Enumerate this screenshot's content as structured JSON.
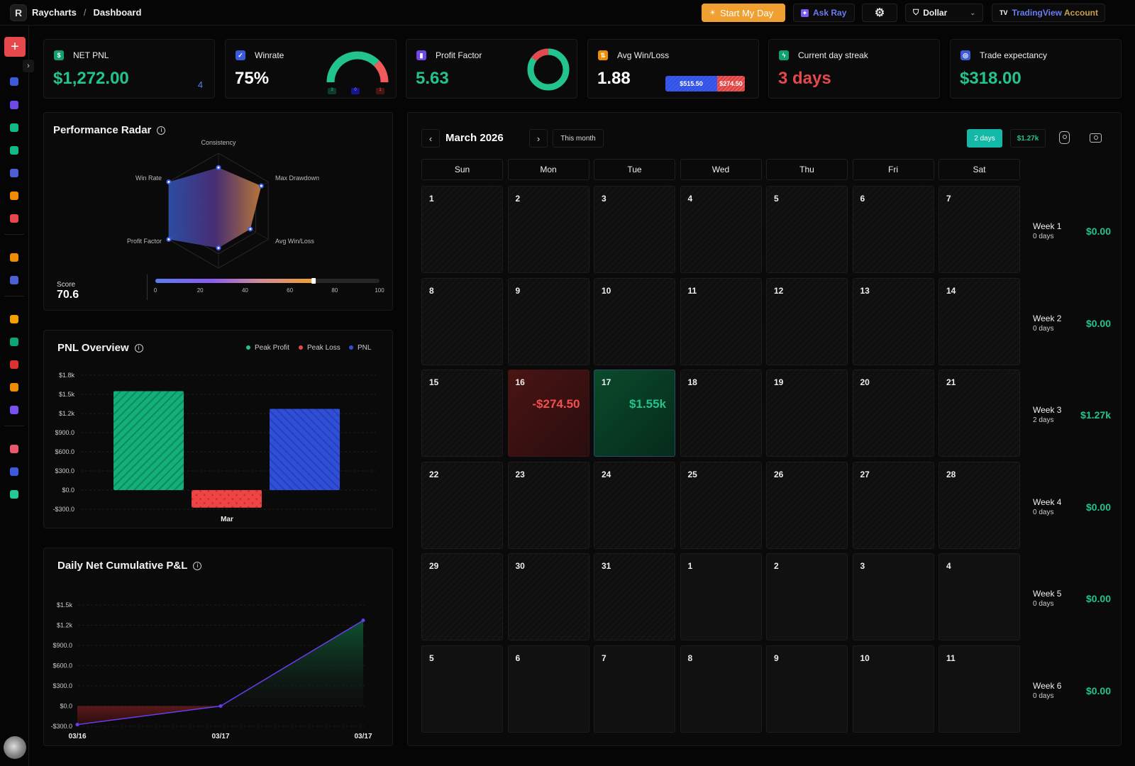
{
  "header": {
    "app": "Raycharts",
    "sep": "/",
    "page": "Dashboard",
    "start_day": "Start My Day",
    "ask_ray": "Ask Ray",
    "currency": "Dollar",
    "tv_brand": "TradingView",
    "tv_account": "Account",
    "logo_letter": "R"
  },
  "sidebar": {
    "expand": "›",
    "plus": "+",
    "icons": [
      {
        "name": "dashboard-icon",
        "color": "#3b5bdb"
      },
      {
        "name": "journal-icon",
        "color": "#7048e8"
      },
      {
        "name": "eye-icon",
        "color": "#12b886"
      },
      {
        "name": "growth-icon",
        "color": "#12b886"
      },
      {
        "name": "analytics-icon",
        "color": "#4c5fd5"
      },
      {
        "name": "calendar-icon",
        "color": "#f08c00"
      },
      {
        "name": "reports-icon",
        "color": "#e5484d"
      },
      {
        "name": "bolt-icon",
        "color": "#f08c00"
      },
      {
        "name": "profile-icon",
        "color": "#4c5fd5"
      },
      {
        "name": "filter-icon",
        "color": "#f59f00"
      },
      {
        "name": "target-icon",
        "color": "#0ca678"
      },
      {
        "name": "chart-red-icon",
        "color": "#e03131"
      },
      {
        "name": "trophy-icon",
        "color": "#f08c00"
      },
      {
        "name": "window-icon",
        "color": "#7950f2"
      },
      {
        "name": "notes-icon",
        "color": "#e8596c"
      },
      {
        "name": "bars-icon",
        "color": "#3b5bdb"
      },
      {
        "name": "image-chart-icon",
        "color": "#20c997"
      }
    ]
  },
  "kpis": {
    "net_pnl": {
      "label": "NET PNL",
      "value": "$1,272.00",
      "count": "4"
    },
    "winrate": {
      "label": "Winrate",
      "value": "75%",
      "wins": "3",
      "breakeven": "0",
      "losses": "1",
      "win_fraction": 0.75
    },
    "profit_factor": {
      "label": "Profit Factor",
      "value": "5.63",
      "loss_fraction": 0.151
    },
    "avg_win_loss": {
      "label": "Avg Win/Loss",
      "value": "1.88",
      "avg_win": "$515.50",
      "avg_loss": "$274.50",
      "win_share": 0.652
    },
    "streak": {
      "label": "Current day streak",
      "value": "3 days"
    },
    "expectancy": {
      "label": "Trade expectancy",
      "value": "$318.00"
    }
  },
  "colors": {
    "green": "#22c38e",
    "red": "#e5484d",
    "blue": "#3451d1",
    "orange": "#f0a030",
    "teal": "#14b8a6"
  },
  "radar": {
    "title": "Performance Radar",
    "info": "i",
    "axes": [
      {
        "label": "Consistency",
        "value": 0.75
      },
      {
        "label": "Max Drawdown",
        "value": 0.86
      },
      {
        "label": "Avg Win/Loss",
        "value": 0.64
      },
      {
        "label": "",
        "value": 0.65
      },
      {
        "label": "Profit Factor",
        "value": 1.0
      },
      {
        "label": "Win Rate",
        "value": 1.0
      }
    ],
    "score_label": "Score",
    "score": "70.6",
    "score_value": 70.6,
    "scale": [
      "0",
      "20",
      "40",
      "60",
      "80",
      "100"
    ]
  },
  "chart_data": [
    {
      "type": "bar",
      "title": "PNL Overview",
      "categories": [
        "Mar"
      ],
      "series": [
        {
          "name": "Peak Profit",
          "values": [
            1550
          ],
          "color": "#22c38e"
        },
        {
          "name": "Peak Loss",
          "values": [
            -274.5
          ],
          "color": "#e5484d"
        },
        {
          "name": "PNL",
          "values": [
            1272
          ],
          "color": "#3451d1"
        }
      ],
      "ylim": [
        -300,
        1800
      ],
      "yticks": [
        "$1.8k",
        "$1.5k",
        "$1.2k",
        "$900.0",
        "$600.0",
        "$300.0",
        "$0.0",
        "-$300.0"
      ],
      "legend": "top-right",
      "grid": true
    },
    {
      "type": "area",
      "title": "Daily Net Cumulative P&L",
      "x": [
        "03/16",
        "03/17",
        "03/17"
      ],
      "values": [
        -274.5,
        0,
        1272
      ],
      "ylim": [
        -300,
        1500
      ],
      "yticks": [
        "$1.5k",
        "$1.2k",
        "$900.0",
        "$600.0",
        "$300.0",
        "$0.0",
        "-$300.0"
      ],
      "grid": true
    }
  ],
  "calendar": {
    "month": "March 2026",
    "prev": "‹",
    "next": "›",
    "this_month": "This month",
    "days_badge": "2 days",
    "total_badge": "$1.27k",
    "weekdays": [
      "Sun",
      "Mon",
      "Tue",
      "Wed",
      "Thu",
      "Fri",
      "Sat"
    ],
    "days": [
      {
        "d": "1"
      },
      {
        "d": "2"
      },
      {
        "d": "3"
      },
      {
        "d": "4"
      },
      {
        "d": "5"
      },
      {
        "d": "6"
      },
      {
        "d": "7"
      },
      {
        "d": "8"
      },
      {
        "d": "9"
      },
      {
        "d": "10"
      },
      {
        "d": "11"
      },
      {
        "d": "12"
      },
      {
        "d": "13"
      },
      {
        "d": "14"
      },
      {
        "d": "15"
      },
      {
        "d": "16",
        "pnl": "-$274.50",
        "kind": "loss"
      },
      {
        "d": "17",
        "pnl": "$1.55k",
        "kind": "win"
      },
      {
        "d": "18"
      },
      {
        "d": "19"
      },
      {
        "d": "20"
      },
      {
        "d": "21"
      },
      {
        "d": "22"
      },
      {
        "d": "23"
      },
      {
        "d": "24"
      },
      {
        "d": "25"
      },
      {
        "d": "26"
      },
      {
        "d": "27"
      },
      {
        "d": "28"
      },
      {
        "d": "29"
      },
      {
        "d": "30"
      },
      {
        "d": "31"
      },
      {
        "d": "1",
        "kind": "plain"
      },
      {
        "d": "2",
        "kind": "plain"
      },
      {
        "d": "3",
        "kind": "plain"
      },
      {
        "d": "4",
        "kind": "plain"
      },
      {
        "d": "5",
        "kind": "plain"
      },
      {
        "d": "6",
        "kind": "plain"
      },
      {
        "d": "7",
        "kind": "plain"
      },
      {
        "d": "8",
        "kind": "plain"
      },
      {
        "d": "9",
        "kind": "plain"
      },
      {
        "d": "10",
        "kind": "plain"
      },
      {
        "d": "11",
        "kind": "plain"
      }
    ],
    "weeks": [
      {
        "label": "Week 1",
        "days": "0 days",
        "value": "$0.00"
      },
      {
        "label": "Week 2",
        "days": "0 days",
        "value": "$0.00"
      },
      {
        "label": "Week 3",
        "days": "2 days",
        "value": "$1.27k"
      },
      {
        "label": "Week 4",
        "days": "0 days",
        "value": "$0.00"
      },
      {
        "label": "Week 5",
        "days": "0 days",
        "value": "$0.00"
      },
      {
        "label": "Week 6",
        "days": "0 days",
        "value": "$0.00"
      }
    ]
  }
}
